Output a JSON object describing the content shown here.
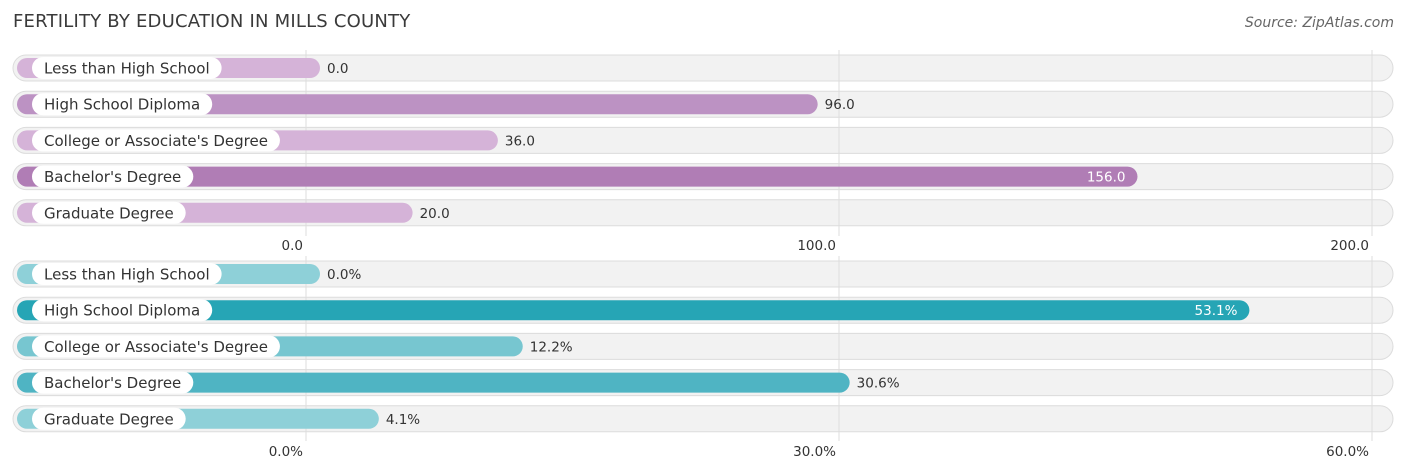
{
  "title": "FERTILITY BY EDUCATION IN MILLS COUNTY",
  "source": "Source: ZipAtlas.com",
  "chart_data": [
    {
      "type": "bar",
      "orientation": "horizontal",
      "categories": [
        "Less than High School",
        "High School Diploma",
        "College or Associate's Degree",
        "Bachelor's Degree",
        "Graduate Degree"
      ],
      "values": [
        0.0,
        96.0,
        36.0,
        156.0,
        20.0
      ],
      "value_labels": [
        "0.0",
        "96.0",
        "36.0",
        "156.0",
        "20.0"
      ],
      "xlim": [
        0,
        200
      ],
      "ticks": [
        0,
        100,
        200
      ],
      "tick_labels": [
        "0.0",
        "100.0",
        "200.0"
      ],
      "colors": [
        "#d5b3d8",
        "#bc92c3",
        "#d5b3d8",
        "#b07db5",
        "#d5b3d8"
      ],
      "grid": true
    },
    {
      "type": "bar",
      "orientation": "horizontal",
      "categories": [
        "Less than High School",
        "High School Diploma",
        "College or Associate's Degree",
        "Bachelor's Degree",
        "Graduate Degree"
      ],
      "values": [
        0.0,
        53.1,
        12.2,
        30.6,
        4.1
      ],
      "value_labels": [
        "0.0%",
        "53.1%",
        "12.2%",
        "30.6%",
        "4.1%"
      ],
      "xlim": [
        0,
        60
      ],
      "ticks": [
        0,
        30,
        60
      ],
      "tick_labels": [
        "0.0%",
        "30.0%",
        "60.0%"
      ],
      "colors": [
        "#8ed0d8",
        "#26a5b5",
        "#77c6d0",
        "#4fb4c3",
        "#8ed0d8"
      ],
      "grid": true
    }
  ]
}
